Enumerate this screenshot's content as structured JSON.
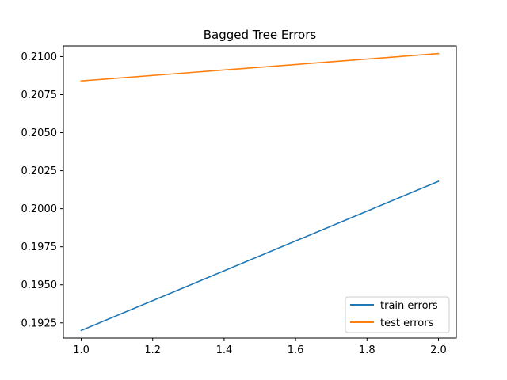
{
  "chart_data": {
    "type": "line",
    "title": "Bagged Tree Errors",
    "xlabel": "",
    "ylabel": "",
    "xlim": [
      0.95,
      2.05
    ],
    "ylim": [
      0.1915,
      0.2107
    ],
    "x_ticks": [
      1.0,
      1.2,
      1.4,
      1.6,
      1.8,
      2.0
    ],
    "x_tick_labels": [
      "1.0",
      "1.2",
      "1.4",
      "1.6",
      "1.8",
      "2.0"
    ],
    "y_ticks": [
      0.1925,
      0.195,
      0.1975,
      0.2,
      0.2025,
      0.205,
      0.2075,
      0.21
    ],
    "y_tick_labels": [
      "0.1925",
      "0.1950",
      "0.1975",
      "0.2000",
      "0.2025",
      "0.2050",
      "0.2075",
      "0.2100"
    ],
    "grid": false,
    "legend_position": "lower-right",
    "series": [
      {
        "name": "train errors",
        "color": "#1f77b4",
        "x": [
          1.0,
          2.0
        ],
        "y": [
          0.192,
          0.2018
        ]
      },
      {
        "name": "test errors",
        "color": "#ff7f0e",
        "x": [
          1.0,
          2.0
        ],
        "y": [
          0.2084,
          0.2102
        ]
      }
    ]
  }
}
